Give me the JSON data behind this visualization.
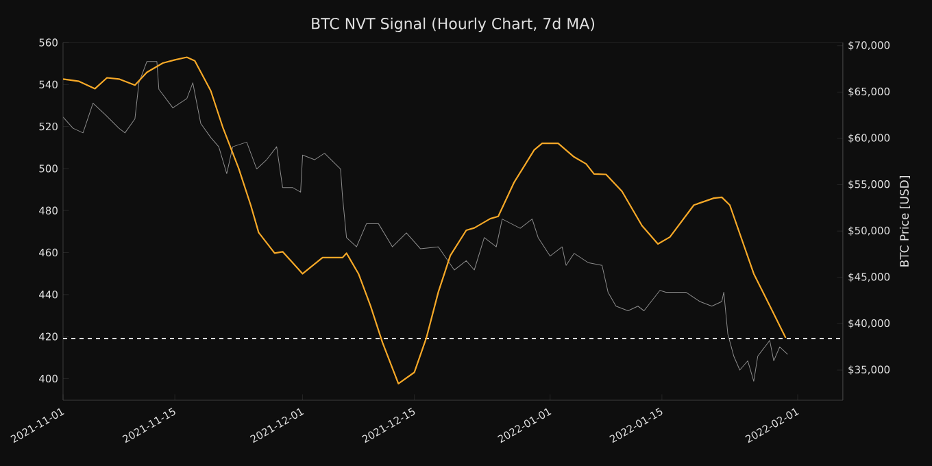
{
  "chart_data": {
    "type": "line",
    "title": "BTC NVT Signal (Hourly Chart, 7d MA)",
    "y2label": "BTC Price [USD]",
    "xlim": [
      "2021-11-01",
      "2022-02-06T16:00"
    ],
    "xticks": [
      "2021-11-01",
      "2021-11-15",
      "2021-12-01",
      "2021-12-15",
      "2022-01-01",
      "2022-01-15",
      "2022-02-01"
    ],
    "ylim": [
      389.7,
      560
    ],
    "yticks": [
      400,
      420,
      440,
      460,
      480,
      500,
      520,
      540,
      560
    ],
    "y2lim": [
      31750,
      70350
    ],
    "y2ticks": [
      {
        "value": 35000,
        "label": "$35,000"
      },
      {
        "value": 40000,
        "label": "$40,000"
      },
      {
        "value": 45000,
        "label": "$45,000"
      },
      {
        "value": 50000,
        "label": "$50,000"
      },
      {
        "value": 55000,
        "label": "$55,000"
      },
      {
        "value": 60000,
        "label": "$60,000"
      },
      {
        "value": 65000,
        "label": "$65,000"
      },
      {
        "value": 70000,
        "label": "$70,000"
      }
    ],
    "ref_lines": [
      {
        "axis": "y",
        "value": 419,
        "color": "#ffffff",
        "line_style": "dashed"
      }
    ],
    "series": [
      {
        "axis": "y2",
        "color": "#8c8c8c",
        "x": [
          "2021-11-01T00:00",
          "2021-11-02T06:00",
          "2021-11-03T12:00",
          "2021-11-04T18:00",
          "2021-11-06T06:00",
          "2021-11-08T00:00",
          "2021-11-08T18:00",
          "2021-11-10T00:00",
          "2021-11-10T12:00",
          "2021-11-11T12:00",
          "2021-11-12T18:00",
          "2021-11-13T00:00",
          "2021-11-14T18:00",
          "2021-11-16T12:00",
          "2021-11-17T06:00",
          "2021-11-18T06:00",
          "2021-11-19T12:00",
          "2021-11-20T12:00",
          "2021-11-21T12:00",
          "2021-11-22T06:00",
          "2021-11-24T00:00",
          "2021-11-25T06:00",
          "2021-11-26T12:00",
          "2021-11-27T18:00",
          "2021-11-28T12:00",
          "2021-11-29T18:00",
          "2021-11-30T18:00",
          "2021-12-01T00:00",
          "2021-12-02T12:00",
          "2021-12-03T18:00",
          "2021-12-05T18:00",
          "2021-12-06T00:00",
          "2021-12-06T12:00",
          "2021-12-07T18:00",
          "2021-12-09T00:00",
          "2021-12-10T12:00",
          "2021-12-12T06:00",
          "2021-12-14T00:00",
          "2021-12-15T18:00",
          "2021-12-18T00:00",
          "2021-12-20T00:00",
          "2021-12-21T12:00",
          "2021-12-22T12:00",
          "2021-12-23T18:00",
          "2021-12-25T06:00",
          "2021-12-26T00:00",
          "2021-12-28T06:00",
          "2021-12-29T18:00",
          "2021-12-30T12:00",
          "2022-01-01T00:00",
          "2022-01-02T12:00",
          "2022-01-03T00:00",
          "2022-01-04T00:00",
          "2022-01-05T18:00",
          "2022-01-07T12:00",
          "2022-01-08T06:00",
          "2022-01-09T06:00",
          "2022-01-10T18:00",
          "2022-01-12T00:00",
          "2022-01-12T18:00",
          "2022-01-14T18:00",
          "2022-01-15T12:00",
          "2022-01-18T00:00",
          "2022-01-19T18:00",
          "2022-01-21T06:00",
          "2022-01-22T12:00",
          "2022-01-22T18:00",
          "2022-01-23T06:00",
          "2022-01-24T00:00",
          "2022-01-24T18:00",
          "2022-01-25T18:00",
          "2022-01-26T12:00",
          "2022-01-27T00:00",
          "2022-01-28T12:00",
          "2022-01-29T00:00",
          "2022-01-29T18:00",
          "2022-01-30T18:00"
        ],
        "values": [
          62300,
          61100,
          60600,
          63800,
          62600,
          61100,
          60600,
          62100,
          66000,
          68300,
          68300,
          65300,
          63300,
          64300,
          66000,
          61600,
          60100,
          59100,
          56200,
          59100,
          59600,
          56700,
          57700,
          59100,
          54700,
          54700,
          54200,
          58200,
          57700,
          58400,
          56700,
          53700,
          49300,
          48300,
          50800,
          50800,
          48300,
          49800,
          48100,
          48300,
          45800,
          46800,
          45800,
          49300,
          48300,
          51300,
          50300,
          51300,
          49300,
          47300,
          48300,
          46300,
          47600,
          46600,
          46300,
          43400,
          41900,
          41400,
          41900,
          41400,
          43600,
          43400,
          43400,
          42400,
          41900,
          42400,
          43400,
          38900,
          36500,
          35000,
          36000,
          33800,
          36500,
          38200,
          36000,
          37500,
          36700
        ]
      },
      {
        "axis": "y",
        "color": "#f7a928",
        "x": [
          "2021-11-01",
          "2021-11-03",
          "2021-11-05",
          "2021-11-06T12:00",
          "2021-11-08",
          "2021-11-10",
          "2021-11-11T12:00",
          "2021-11-13T12:00",
          "2021-11-15",
          "2021-11-16T12:00",
          "2021-11-17T12:00",
          "2021-11-19T12:00",
          "2021-11-21",
          "2021-11-23",
          "2021-11-24T12:00",
          "2021-11-25T12:00",
          "2021-11-27T12:00",
          "2021-11-28T12:00",
          "2021-12-01",
          "2021-12-03T12:00",
          "2021-12-06",
          "2021-12-06T12:00",
          "2021-12-08",
          "2021-12-09T12:00",
          "2021-12-11",
          "2021-12-13",
          "2021-12-15",
          "2021-12-16T12:00",
          "2021-12-18",
          "2021-12-19T12:00",
          "2021-12-21T12:00",
          "2021-12-22T12:00",
          "2021-12-24T12:00",
          "2021-12-25T12:00",
          "2021-12-27T12:00",
          "2021-12-30",
          "2021-12-31",
          "2022-01-02",
          "2022-01-04",
          "2022-01-05T12:00",
          "2022-01-06T12:00",
          "2022-01-08",
          "2022-01-10",
          "2022-01-12T12:00",
          "2022-01-14T12:00",
          "2022-01-16",
          "2022-01-19",
          "2022-01-21T12:00",
          "2022-01-22T12:00",
          "2022-01-23T12:00",
          "2022-01-26T12:00",
          "2022-01-28T12:00",
          "2022-01-30T12:00"
        ],
        "values": [
          542.6,
          541.5,
          538,
          543.2,
          542.6,
          539.7,
          545.8,
          550.2,
          551.7,
          553,
          551.3,
          537,
          519.7,
          500,
          482.6,
          469.5,
          459.7,
          460.4,
          449.9,
          457.6,
          457.6,
          459.7,
          449.9,
          434.7,
          417.2,
          397.6,
          403,
          419.4,
          441.2,
          458.6,
          470.6,
          471.7,
          476.1,
          477.2,
          493.5,
          508.8,
          512,
          512,
          505.5,
          502.2,
          497.4,
          497.2,
          489.1,
          472.8,
          464.1,
          467.4,
          482.6,
          485.9,
          486.3,
          482.6,
          449.9,
          434.7,
          419.4
        ]
      }
    ]
  }
}
